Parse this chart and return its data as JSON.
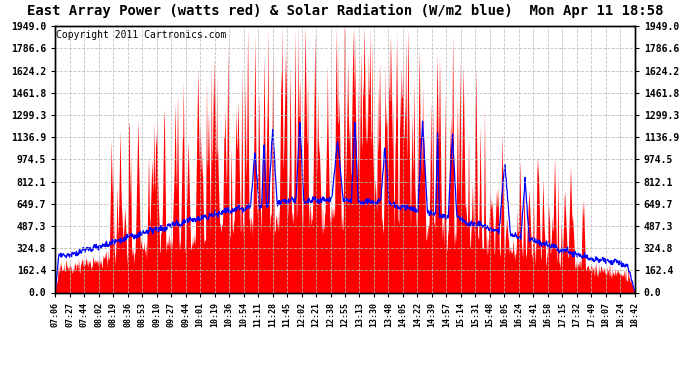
{
  "title": "East Array Power (watts red) & Solar Radiation (W/m2 blue)  Mon Apr 11 18:58",
  "copyright": "Copyright 2011 Cartronics.com",
  "yticks": [
    0.0,
    162.4,
    324.8,
    487.3,
    649.7,
    812.1,
    974.5,
    1136.9,
    1299.3,
    1461.8,
    1624.2,
    1786.6,
    1949.0
  ],
  "xtick_labels": [
    "07:06",
    "07:27",
    "07:44",
    "08:02",
    "08:19",
    "08:36",
    "08:53",
    "09:10",
    "09:27",
    "09:44",
    "10:01",
    "10:19",
    "10:36",
    "10:54",
    "11:11",
    "11:28",
    "11:45",
    "12:02",
    "12:21",
    "12:38",
    "12:55",
    "13:13",
    "13:30",
    "13:48",
    "14:05",
    "14:22",
    "14:39",
    "14:57",
    "15:14",
    "15:31",
    "15:48",
    "16:05",
    "16:24",
    "16:41",
    "16:58",
    "17:15",
    "17:32",
    "17:49",
    "18:07",
    "18:24",
    "18:42"
  ],
  "ymax": 1949.0,
  "ymin": 0.0,
  "red_color": "#FF0000",
  "blue_color": "#0000FF",
  "bg_color": "#FFFFFF",
  "plot_bg_color": "#FFFFFF",
  "grid_color": "#BBBBBB",
  "title_fontsize": 10,
  "copyright_fontsize": 7
}
